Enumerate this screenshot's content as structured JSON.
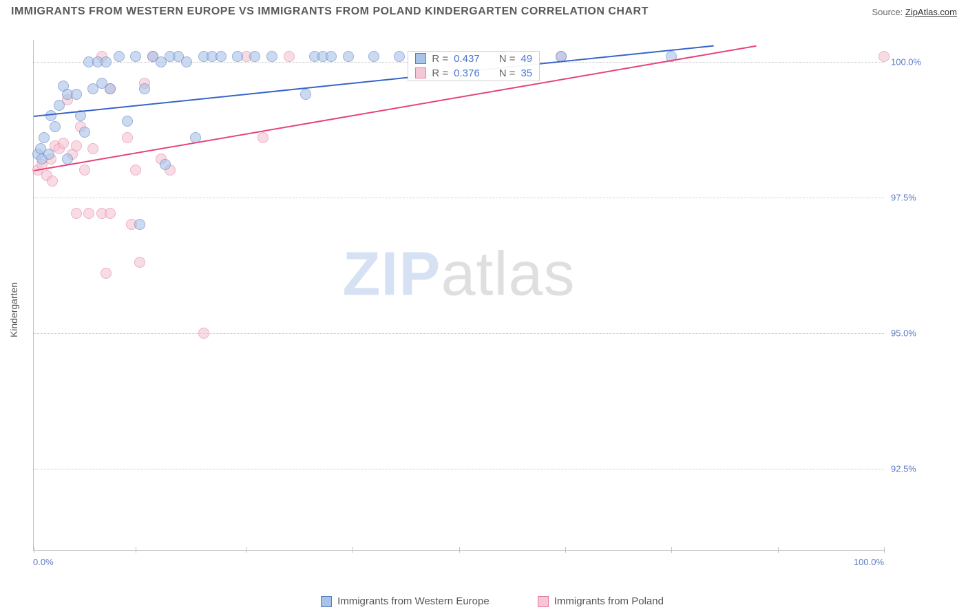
{
  "title": "IMMIGRANTS FROM WESTERN EUROPE VS IMMIGRANTS FROM POLAND KINDERGARTEN CORRELATION CHART",
  "source_label": "Source: ",
  "source_link": "ZipAtlas.com",
  "y_axis_label": "Kindergarten",
  "watermark_zip": "ZIP",
  "watermark_atlas": "atlas",
  "chart": {
    "type": "scatter",
    "xlim": [
      0,
      100
    ],
    "ylim": [
      91,
      100.4
    ],
    "x_ticks": [
      0,
      12,
      25,
      37.5,
      50,
      62.5,
      75,
      87.5,
      100
    ],
    "x_tick_labels": {
      "0": "0.0%",
      "100": "100.0%"
    },
    "y_ticks": [
      92.5,
      95.0,
      97.5,
      100.0
    ],
    "y_tick_labels": [
      "92.5%",
      "95.0%",
      "97.5%",
      "100.0%"
    ],
    "background_color": "#ffffff",
    "grid_color": "#d0d0d0",
    "marker_radius": 8,
    "series": {
      "s1": {
        "label": "Immigrants from Western Europe",
        "fill": "#a8c3e8",
        "stroke": "#5b7bc4",
        "trend_color": "#3764c8",
        "trend": {
          "x1": 0,
          "y1": 99.0,
          "x2": 80,
          "y2": 100.3
        },
        "R": "0.437",
        "N": "49",
        "points": [
          [
            0.5,
            98.3
          ],
          [
            0.8,
            98.4
          ],
          [
            1.0,
            98.2
          ],
          [
            1.2,
            98.6
          ],
          [
            1.8,
            98.3
          ],
          [
            2.0,
            99.0
          ],
          [
            2.5,
            98.8
          ],
          [
            3.0,
            99.2
          ],
          [
            3.5,
            99.55
          ],
          [
            4.0,
            99.4
          ],
          [
            4.0,
            98.2
          ],
          [
            5.0,
            99.4
          ],
          [
            5.5,
            99.0
          ],
          [
            6.0,
            98.7
          ],
          [
            6.5,
            100.0
          ],
          [
            7.0,
            99.5
          ],
          [
            7.5,
            100.0
          ],
          [
            8.0,
            99.6
          ],
          [
            8.5,
            100.0
          ],
          [
            9.0,
            99.5
          ],
          [
            10.0,
            100.1
          ],
          [
            11.0,
            98.9
          ],
          [
            12.0,
            100.1
          ],
          [
            12.5,
            97.0
          ],
          [
            13.0,
            99.5
          ],
          [
            14.0,
            100.1
          ],
          [
            15.0,
            100.0
          ],
          [
            15.5,
            98.1
          ],
          [
            16.0,
            100.1
          ],
          [
            17.0,
            100.1
          ],
          [
            18.0,
            100.0
          ],
          [
            19.0,
            98.6
          ],
          [
            20.0,
            100.1
          ],
          [
            21.0,
            100.1
          ],
          [
            22.0,
            100.1
          ],
          [
            24.0,
            100.1
          ],
          [
            26.0,
            100.1
          ],
          [
            28.0,
            100.1
          ],
          [
            32.0,
            99.4
          ],
          [
            33.0,
            100.1
          ],
          [
            34.0,
            100.1
          ],
          [
            35.0,
            100.1
          ],
          [
            37.0,
            100.1
          ],
          [
            40.0,
            100.1
          ],
          [
            43.0,
            100.1
          ],
          [
            50.0,
            100.1
          ],
          [
            55.0,
            100.1
          ],
          [
            62.0,
            100.1
          ],
          [
            75.0,
            100.1
          ]
        ]
      },
      "s2": {
        "label": "Immigrants from Poland",
        "fill": "#f5c6d3",
        "stroke": "#e67ba0",
        "trend_color": "#e6437a",
        "trend": {
          "x1": 0,
          "y1": 98.0,
          "x2": 85,
          "y2": 100.3
        },
        "R": "0.376",
        "N": "35",
        "points": [
          [
            0.5,
            98.0
          ],
          [
            1.0,
            98.1
          ],
          [
            1.5,
            97.9
          ],
          [
            2.0,
            98.2
          ],
          [
            2.2,
            97.8
          ],
          [
            2.5,
            98.45
          ],
          [
            3.0,
            98.4
          ],
          [
            3.5,
            98.5
          ],
          [
            4.0,
            99.3
          ],
          [
            4.5,
            98.3
          ],
          [
            5.0,
            98.45
          ],
          [
            5.0,
            97.2
          ],
          [
            5.5,
            98.8
          ],
          [
            6.0,
            98.0
          ],
          [
            6.5,
            97.2
          ],
          [
            7.0,
            98.4
          ],
          [
            8.0,
            97.2
          ],
          [
            8.0,
            100.1
          ],
          [
            8.5,
            96.1
          ],
          [
            9.0,
            97.2
          ],
          [
            9.0,
            99.5
          ],
          [
            11.0,
            98.6
          ],
          [
            11.5,
            97.0
          ],
          [
            12.0,
            98.0
          ],
          [
            12.5,
            96.3
          ],
          [
            13.0,
            99.6
          ],
          [
            14.0,
            100.1
          ],
          [
            15.0,
            98.2
          ],
          [
            16.0,
            98.0
          ],
          [
            20.0,
            95.0
          ],
          [
            25.0,
            100.1
          ],
          [
            27.0,
            98.6
          ],
          [
            30.0,
            100.1
          ],
          [
            62.0,
            100.1
          ],
          [
            100.0,
            100.1
          ]
        ]
      }
    }
  },
  "stats_box": {
    "prefix_R": "R = ",
    "prefix_N": "N = "
  }
}
